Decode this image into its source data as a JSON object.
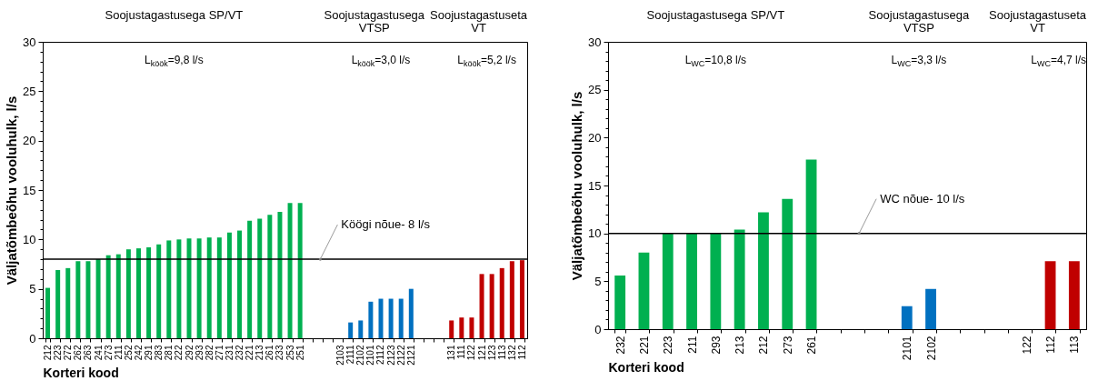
{
  "chart_data": [
    {
      "type": "bar",
      "xlabel": "Korteri kood",
      "ylabel": "Väljatõmbeõhu vooluhulk, l/s",
      "categories": [
        "212",
        "223",
        "272",
        "262",
        "263",
        "241",
        "273",
        "211",
        "252",
        "242",
        "291",
        "283",
        "281",
        "222",
        "292",
        "293",
        "282",
        "271",
        "231",
        "232",
        "221",
        "213",
        "261",
        "233",
        "253",
        "251",
        null,
        null,
        null,
        "2103",
        "2111",
        "2102",
        "2101",
        "2112",
        "2123",
        "2122",
        "2121",
        null,
        null,
        null,
        "131",
        "111",
        "122",
        "121",
        "123",
        "113",
        "132",
        "112"
      ],
      "series": [
        {
          "color": "#00b050",
          "values": [
            5.1,
            6.9,
            7.1,
            7.8,
            7.8,
            8.0,
            8.4,
            8.5,
            9.0,
            9.1,
            9.2,
            9.5,
            9.9,
            10.0,
            10.1,
            10.1,
            10.2,
            10.2,
            10.7,
            10.9,
            11.9,
            12.1,
            12.5,
            12.8,
            13.7,
            13.7,
            null,
            null,
            null,
            null,
            null,
            null,
            null,
            null,
            null,
            null,
            null,
            null,
            null,
            null,
            null,
            null,
            null,
            null,
            null,
            null,
            null,
            null
          ]
        },
        {
          "color": "#0070c0",
          "values": [
            null,
            null,
            null,
            null,
            null,
            null,
            null,
            null,
            null,
            null,
            null,
            null,
            null,
            null,
            null,
            null,
            null,
            null,
            null,
            null,
            null,
            null,
            null,
            null,
            null,
            null,
            null,
            null,
            null,
            null,
            1.6,
            1.8,
            3.7,
            4.0,
            4.0,
            4.0,
            5.0,
            null,
            null,
            null,
            null,
            null,
            null,
            null,
            null,
            null,
            null,
            null
          ]
        },
        {
          "color": "#c00000",
          "values": [
            null,
            null,
            null,
            null,
            null,
            null,
            null,
            null,
            null,
            null,
            null,
            null,
            null,
            null,
            null,
            null,
            null,
            null,
            null,
            null,
            null,
            null,
            null,
            null,
            null,
            null,
            null,
            null,
            null,
            null,
            null,
            null,
            null,
            null,
            null,
            null,
            null,
            null,
            null,
            null,
            1.8,
            2.1,
            2.1,
            6.5,
            6.5,
            7.1,
            7.8,
            7.9
          ]
        }
      ],
      "ylim": [
        0,
        30
      ],
      "yticks": [
        0,
        {
          "value": 1,
          "label": null
        },
        {
          "value": 2,
          "label": null
        },
        {
          "value": 3,
          "label": null
        },
        {
          "value": 4,
          "label": null
        },
        5,
        {
          "value": 6,
          "label": null
        },
        {
          "value": 7,
          "label": null
        },
        {
          "value": 8,
          "label": null
        },
        {
          "value": 9,
          "label": null
        },
        10,
        {
          "value": 11,
          "label": null
        },
        {
          "value": 12,
          "label": null
        },
        {
          "value": 13,
          "label": null
        },
        {
          "value": 14,
          "label": null
        },
        15,
        {
          "value": 16,
          "label": null
        },
        {
          "value": 17,
          "label": null
        },
        {
          "value": 18,
          "label": null
        },
        {
          "value": 19,
          "label": null
        },
        20,
        {
          "value": 21,
          "label": null
        },
        {
          "value": 22,
          "label": null
        },
        {
          "value": 23,
          "label": null
        },
        {
          "value": 24,
          "label": null
        },
        25,
        {
          "value": 26,
          "label": null
        },
        {
          "value": 27,
          "label": null
        },
        {
          "value": 28,
          "label": null
        },
        {
          "value": 29,
          "label": null
        },
        30
      ],
      "ref_lines": [
        {
          "axis": "y",
          "value": 8,
          "label": "Köögi nõue- 8 l/s",
          "color": "#000000"
        }
      ],
      "annotations": [
        "Soojustagastusega SP/VT",
        "Soojustagastusega\nVTSP",
        "Soojustagastuseta\nVT",
        "L$_{köök}$=9,8 l/s",
        "L$_{köök}$=3,0 l/s",
        "L$_{köök}$=5,2 l/s"
      ]
    },
    {
      "type": "bar",
      "xlabel": "Korteri kood",
      "ylabel": "Väljatõmbeõhu vooluhulk, l/s",
      "categories": [
        "232",
        "221",
        "223",
        "211",
        "293",
        "213",
        "212",
        "273",
        "261",
        null,
        null,
        null,
        "2101",
        "2102",
        null,
        null,
        null,
        "122",
        "112",
        "113"
      ],
      "series": [
        {
          "color": "#00b050",
          "values": [
            5.6,
            8.0,
            10.0,
            10.0,
            10.0,
            10.4,
            12.2,
            13.6,
            17.7,
            null,
            null,
            null,
            null,
            null,
            null,
            null,
            null,
            null,
            null,
            null
          ]
        },
        {
          "color": "#0070c0",
          "values": [
            null,
            null,
            null,
            null,
            null,
            null,
            null,
            null,
            null,
            null,
            null,
            null,
            2.4,
            4.2,
            null,
            null,
            null,
            null,
            null,
            null
          ]
        },
        {
          "color": "#c00000",
          "values": [
            null,
            null,
            null,
            null,
            null,
            null,
            null,
            null,
            null,
            null,
            null,
            null,
            null,
            null,
            null,
            null,
            null,
            null,
            7.1,
            7.1
          ]
        }
      ],
      "ylim": [
        0,
        30
      ],
      "yticks": [
        0,
        {
          "value": 1,
          "label": null
        },
        {
          "value": 2,
          "label": null
        },
        {
          "value": 3,
          "label": null
        },
        {
          "value": 4,
          "label": null
        },
        5,
        {
          "value": 6,
          "label": null
        },
        {
          "value": 7,
          "label": null
        },
        {
          "value": 8,
          "label": null
        },
        {
          "value": 9,
          "label": null
        },
        10,
        {
          "value": 11,
          "label": null
        },
        {
          "value": 12,
          "label": null
        },
        {
          "value": 13,
          "label": null
        },
        {
          "value": 14,
          "label": null
        },
        15,
        {
          "value": 16,
          "label": null
        },
        {
          "value": 17,
          "label": null
        },
        {
          "value": 18,
          "label": null
        },
        {
          "value": 19,
          "label": null
        },
        20,
        {
          "value": 21,
          "label": null
        },
        {
          "value": 22,
          "label": null
        },
        {
          "value": 23,
          "label": null
        },
        {
          "value": 24,
          "label": null
        },
        25,
        {
          "value": 26,
          "label": null
        },
        {
          "value": 27,
          "label": null
        },
        {
          "value": 28,
          "label": null
        },
        {
          "value": 29,
          "label": null
        },
        30
      ],
      "ref_lines": [
        {
          "axis": "y",
          "value": 10,
          "label": "WC nõue- 10 l/s",
          "color": "#000000"
        }
      ],
      "annotations": [
        "Soojustagastusega SP/VT",
        "Soojustagastusega\nVTSP",
        "Soojustagastuseta\nVT",
        "L$_{WC}$=10,8 l/s",
        "L$_{WC}$=3,3 l/s",
        "L$_{WC}$=4,7 l/s"
      ]
    }
  ]
}
